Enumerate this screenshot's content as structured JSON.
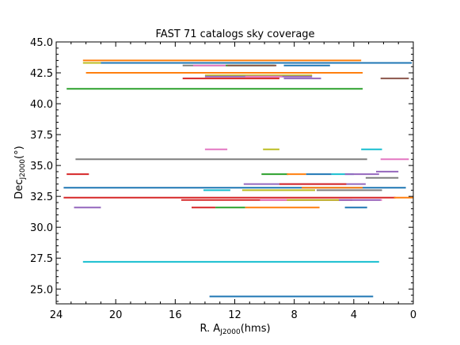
{
  "chart_data": {
    "type": "line",
    "title": "FAST 71 catalogs sky coverage",
    "xlabel": "R. A",
    "xlabel_sub": "J2000",
    "xlabel_unit": "(hms)",
    "ylabel": "Dec",
    "ylabel_sub": "J2000",
    "ylabel_unit": "(°)",
    "xlim": [
      24,
      0
    ],
    "ylim": [
      23.8,
      45.0
    ],
    "x_reversed": true,
    "xticks": [
      {
        "value": 24,
        "label": "24"
      },
      {
        "value": 20,
        "label": "20"
      },
      {
        "value": 16,
        "label": "16"
      },
      {
        "value": 12,
        "label": "12"
      },
      {
        "value": 8,
        "label": "8"
      },
      {
        "value": 4,
        "label": "4"
      },
      {
        "value": 0,
        "label": "0"
      }
    ],
    "yticks": [
      {
        "value": 25.0,
        "label": "25.0"
      },
      {
        "value": 27.5,
        "label": "27.5"
      },
      {
        "value": 30.0,
        "label": "30.0"
      },
      {
        "value": 32.5,
        "label": "32.5"
      },
      {
        "value": 35.0,
        "label": "35.0"
      },
      {
        "value": 37.5,
        "label": "37.5"
      },
      {
        "value": 40.0,
        "label": "40.0"
      },
      {
        "value": 42.5,
        "label": "42.5"
      },
      {
        "value": 45.0,
        "label": "45.0"
      }
    ],
    "grid": false,
    "segments": [
      {
        "ra_start": 22.2,
        "ra_end": 3.5,
        "dec": 43.5,
        "color": "#ff7f0e"
      },
      {
        "ra_start": 22.2,
        "ra_end": 20.9,
        "dec": 43.3,
        "color": "#bcbd22"
      },
      {
        "ra_start": 21.0,
        "ra_end": 0.1,
        "dec": 43.3,
        "color": "#1f77b4"
      },
      {
        "ra_start": 15.5,
        "ra_end": 12.6,
        "dec": 43.1,
        "color": "#7f7f7f"
      },
      {
        "ra_start": 14.8,
        "ra_end": 12.5,
        "dec": 43.1,
        "color": "#e377c2"
      },
      {
        "ra_start": 12.6,
        "ra_end": 9.3,
        "dec": 43.1,
        "color": "#2ca02c"
      },
      {
        "ra_start": 12.5,
        "ra_end": 9.2,
        "dec": 43.1,
        "color": "#8c564b"
      },
      {
        "ra_start": 8.7,
        "ra_end": 5.6,
        "dec": 43.1,
        "color": "#1f77b4"
      },
      {
        "ra_start": 22.0,
        "ra_end": 3.4,
        "dec": 42.5,
        "color": "#ff7f0e"
      },
      {
        "ra_start": 14.0,
        "ra_end": 6.8,
        "dec": 42.3,
        "color": "#bcbd22"
      },
      {
        "ra_start": 14.0,
        "ra_end": 6.8,
        "dec": 42.2,
        "color": "#9467bd"
      },
      {
        "ra_start": 15.5,
        "ra_end": 9.0,
        "dec": 42.05,
        "color": "#d62728"
      },
      {
        "ra_start": 8.7,
        "ra_end": 6.2,
        "dec": 42.05,
        "color": "#9467bd"
      },
      {
        "ra_start": 11.3,
        "ra_end": 8.8,
        "dec": 42.2,
        "color": "#e377c2"
      },
      {
        "ra_start": 2.2,
        "ra_end": 0.3,
        "dec": 42.05,
        "color": "#8c564b"
      },
      {
        "ra_start": 23.3,
        "ra_end": 3.4,
        "dec": 41.2,
        "color": "#2ca02c"
      },
      {
        "ra_start": 14.0,
        "ra_end": 12.5,
        "dec": 36.3,
        "color": "#e377c2"
      },
      {
        "ra_start": 10.1,
        "ra_end": 9.0,
        "dec": 36.3,
        "color": "#bcbd22"
      },
      {
        "ra_start": 3.5,
        "ra_end": 2.1,
        "dec": 36.3,
        "color": "#17becf"
      },
      {
        "ra_start": 22.7,
        "ra_end": 3.1,
        "dec": 35.5,
        "color": "#7f7f7f"
      },
      {
        "ra_start": 2.2,
        "ra_end": 0.3,
        "dec": 35.5,
        "color": "#e377c2"
      },
      {
        "ra_start": 2.5,
        "ra_end": 1.0,
        "dec": 34.5,
        "color": "#9467bd"
      },
      {
        "ra_start": 23.3,
        "ra_end": 21.8,
        "dec": 34.3,
        "color": "#d62728"
      },
      {
        "ra_start": 10.2,
        "ra_end": 8.4,
        "dec": 34.3,
        "color": "#2ca02c"
      },
      {
        "ra_start": 8.5,
        "ra_end": 7.2,
        "dec": 34.3,
        "color": "#ff7f0e"
      },
      {
        "ra_start": 7.2,
        "ra_end": 5.5,
        "dec": 34.3,
        "color": "#1f77b4"
      },
      {
        "ra_start": 5.5,
        "ra_end": 4.0,
        "dec": 34.3,
        "color": "#17becf"
      },
      {
        "ra_start": 4.6,
        "ra_end": 2.3,
        "dec": 34.3,
        "color": "#9467bd"
      },
      {
        "ra_start": 3.2,
        "ra_end": 1.0,
        "dec": 34.0,
        "color": "#7f7f7f"
      },
      {
        "ra_start": 11.4,
        "ra_end": 3.2,
        "dec": 33.5,
        "color": "#9467bd"
      },
      {
        "ra_start": 9.0,
        "ra_end": 4.5,
        "dec": 33.5,
        "color": "#d62728"
      },
      {
        "ra_start": 23.5,
        "ra_end": 0.5,
        "dec": 33.2,
        "color": "#1f77b4"
      },
      {
        "ra_start": 7.5,
        "ra_end": 3.4,
        "dec": 33.2,
        "color": "#ff7f0e"
      },
      {
        "ra_start": 14.1,
        "ra_end": 12.3,
        "dec": 33.0,
        "color": "#17becf"
      },
      {
        "ra_start": 11.5,
        "ra_end": 6.6,
        "dec": 33.0,
        "color": "#bcbd22"
      },
      {
        "ra_start": 6.5,
        "ra_end": 2.1,
        "dec": 33.0,
        "color": "#7f7f7f"
      },
      {
        "ra_start": 23.5,
        "ra_end": 1.2,
        "dec": 32.4,
        "color": "#d62728"
      },
      {
        "ra_start": 1.3,
        "ra_end": 0.0,
        "dec": 32.4,
        "color": "#ff7f0e"
      },
      {
        "ra_start": 15.6,
        "ra_end": 4.1,
        "dec": 32.2,
        "color": "#d62728"
      },
      {
        "ra_start": 10.3,
        "ra_end": 2.1,
        "dec": 32.2,
        "color": "#e377c2"
      },
      {
        "ra_start": 8.5,
        "ra_end": 5.0,
        "dec": 32.2,
        "color": "#bcbd22"
      },
      {
        "ra_start": 5.0,
        "ra_end": 2.2,
        "dec": 32.2,
        "color": "#9467bd"
      },
      {
        "ra_start": 22.8,
        "ra_end": 21.0,
        "dec": 31.6,
        "color": "#9467bd"
      },
      {
        "ra_start": 14.9,
        "ra_end": 13.3,
        "dec": 31.6,
        "color": "#d62728"
      },
      {
        "ra_start": 13.3,
        "ra_end": 11.3,
        "dec": 31.6,
        "color": "#2ca02c"
      },
      {
        "ra_start": 11.3,
        "ra_end": 6.3,
        "dec": 31.6,
        "color": "#ff7f0e"
      },
      {
        "ra_start": 4.6,
        "ra_end": 3.1,
        "dec": 31.6,
        "color": "#1f77b4"
      },
      {
        "ra_start": 22.2,
        "ra_end": 2.3,
        "dec": 27.2,
        "color": "#17becf"
      },
      {
        "ra_start": 13.7,
        "ra_end": 2.7,
        "dec": 24.4,
        "color": "#1f77b4"
      }
    ]
  }
}
